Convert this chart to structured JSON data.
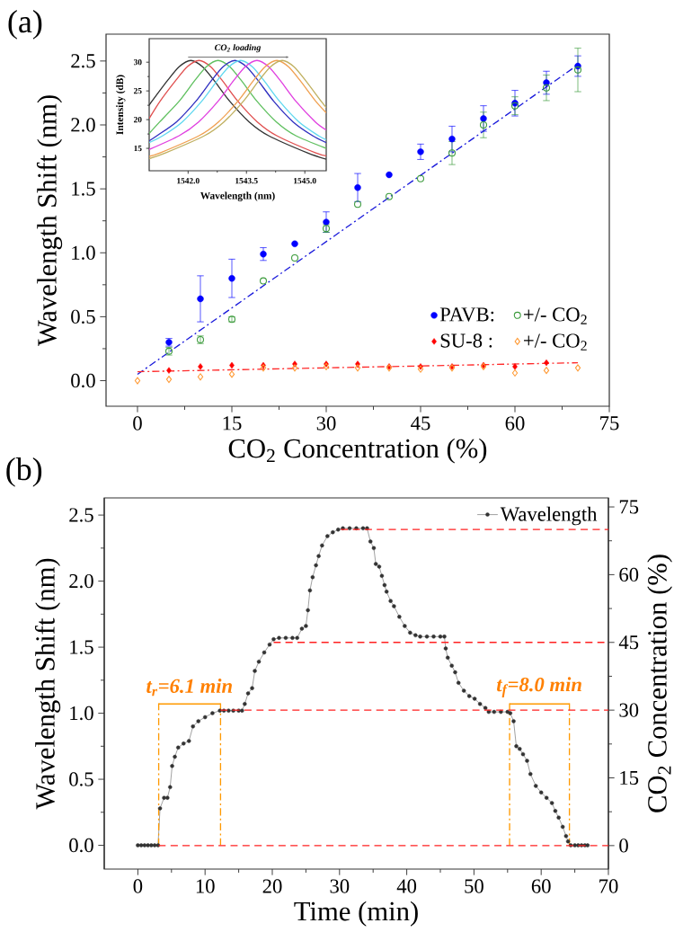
{
  "chart_data": [
    {
      "type": "scatter",
      "title": "(a)",
      "xlabel": "CO$_{2}$ Concentration (%)",
      "ylabel": "Wavelength Shift (nm)",
      "xlim": [
        -5,
        75
      ],
      "ylim": [
        -0.2,
        2.71
      ],
      "xticks": [
        0,
        15,
        30,
        45,
        60,
        75
      ],
      "yticks": [
        {
          "value": 0,
          "label": "0.0"
        },
        {
          "value": 0.5,
          "label": "0.5"
        },
        {
          "value": 1,
          "label": "1.0"
        },
        {
          "value": 1.5,
          "label": "1.5"
        },
        {
          "value": 2,
          "label": "2.0"
        },
        {
          "value": 2.5,
          "label": "2.5"
        }
      ],
      "legend": "bottom right",
      "series": [
        {
          "name": "PAVB:",
          "color": "#0000ff",
          "marker": "circle",
          "x": [
            5,
            10,
            15,
            20,
            25,
            30,
            35,
            40,
            45,
            50,
            55,
            60,
            65,
            70
          ],
          "values": [
            0.3,
            0.64,
            0.8,
            0.99,
            1.07,
            1.24,
            1.51,
            1.61,
            1.79,
            1.89,
            2.05,
            2.17,
            2.33,
            2.46
          ],
          "errors": [
            0.03,
            0.18,
            0.15,
            0.05,
            null,
            0.08,
            0.11,
            null,
            0.06,
            0.1,
            0.1,
            0.1,
            0.09,
            0.08
          ]
        },
        {
          "name": "+/- CO$_{2}$",
          "color": "#3a9a3a",
          "marker": "circle",
          "x": [
            5,
            10,
            15,
            20,
            25,
            30,
            35,
            40,
            45,
            50,
            55,
            60,
            65,
            70
          ],
          "values": [
            0.23,
            0.32,
            0.48,
            0.78,
            0.96,
            1.19,
            1.38,
            1.44,
            1.58,
            1.78,
            2.0,
            2.15,
            2.29,
            2.43
          ],
          "errors": [
            0.03,
            0.03,
            0.02,
            null,
            null,
            0.03,
            null,
            null,
            null,
            0.09,
            0.1,
            0.07,
            0.1,
            0.17
          ]
        },
        {
          "name": "SU-8 :",
          "color": "#ff0000",
          "marker": "diamond",
          "x": [
            5,
            10,
            15,
            20,
            25,
            30,
            35,
            40,
            45,
            50,
            55,
            60,
            65
          ],
          "values": [
            0.08,
            0.11,
            0.12,
            0.12,
            0.13,
            0.13,
            0.13,
            0.11,
            0.11,
            0.11,
            0.12,
            0.11,
            0.14
          ]
        },
        {
          "name": "+/- CO$_{2}$",
          "color": "#ff9933",
          "marker": "diamond",
          "x": [
            0,
            5,
            10,
            15,
            20,
            25,
            30,
            35,
            40,
            45,
            50,
            55,
            60,
            65,
            70
          ],
          "values": [
            0.0,
            0.01,
            0.03,
            0.05,
            0.1,
            0.1,
            0.11,
            0.1,
            0.1,
            0.09,
            0.1,
            0.11,
            0.06,
            0.08,
            0.1
          ]
        },
        {
          "type": "line",
          "color": "#1a1adb",
          "marker": "none",
          "line_style": "dashdot",
          "x": [
            0,
            70
          ],
          "values": [
            0.05,
            2.47
          ]
        },
        {
          "type": "line",
          "color": "#ff2a2a",
          "marker": "none",
          "line_style": "dashdot",
          "x": [
            0,
            70
          ],
          "values": [
            0.07,
            0.14
          ]
        }
      ]
    },
    {
      "type": "line",
      "xlabel": "Wavelength (nm)",
      "ylabel": "Intensity (dB)",
      "xlim": [
        1541.0,
        1545.55
      ],
      "ylim": [
        11.1,
        34.1
      ],
      "xticks": [
        {
          "value": 1542,
          "label": "1542.0"
        },
        {
          "value": 1543.5,
          "label": "1543.5"
        },
        {
          "value": 1545,
          "label": "1545.0"
        }
      ],
      "yticks": [
        15,
        20,
        25,
        30
      ],
      "annotations": [
        "CO$_{2}$ loading"
      ],
      "series": [
        {
          "color": "#333333",
          "marker": "none",
          "x": [
            1541.0,
            1541.07,
            1541.47,
            1541.77,
            1542.07,
            1542.37,
            1542.67,
            1543.07,
            1543.57,
            1544.07,
            1545.07,
            1545.55
          ],
          "values": [
            22.5,
            23.2,
            26.8,
            29.2,
            30.3,
            29.2,
            26.8,
            23.2,
            19.6,
            17.2,
            14.2,
            13.1
          ]
        },
        {
          "color": "#e05050",
          "marker": "none",
          "x": [
            1541.0,
            1541.28,
            1541.68,
            1541.98,
            1542.28,
            1542.58,
            1542.88,
            1543.28,
            1543.78,
            1544.28,
            1545.28,
            1545.55
          ],
          "values": [
            20.2,
            23.2,
            26.8,
            29.2,
            30.3,
            29.2,
            26.8,
            23.2,
            19.6,
            17.2,
            14.2,
            13.7
          ]
        },
        {
          "color": "#60c060",
          "marker": "none",
          "x": [
            1541.0,
            1541.27,
            1541.77,
            1542.17,
            1542.47,
            1542.77,
            1543.07,
            1543.37,
            1543.77,
            1544.27,
            1544.77,
            1545.55
          ],
          "values": [
            17.6,
            19.6,
            23.2,
            26.8,
            29.2,
            30.3,
            29.2,
            26.8,
            23.2,
            19.6,
            17.2,
            15.0
          ]
        },
        {
          "color": "#3030c0",
          "marker": "none",
          "x": [
            1541.0,
            1541.2,
            1541.7,
            1542.2,
            1542.6,
            1542.9,
            1543.2,
            1543.5,
            1543.8,
            1544.2,
            1544.7,
            1545.2,
            1545.55
          ],
          "values": [
            16.3,
            17.2,
            19.6,
            23.2,
            26.8,
            29.2,
            30.3,
            29.2,
            26.8,
            23.2,
            19.6,
            17.2,
            16.0
          ]
        },
        {
          "color": "#60d8f0",
          "marker": "none",
          "x": [
            1541.0,
            1541.35,
            1541.85,
            1542.35,
            1542.75,
            1543.05,
            1543.35,
            1543.65,
            1543.95,
            1544.35,
            1544.85,
            1545.35,
            1545.55
          ],
          "values": [
            16.0,
            17.2,
            19.6,
            23.2,
            26.8,
            29.2,
            30.3,
            29.2,
            26.8,
            23.2,
            19.6,
            17.2,
            16.5
          ]
        },
        {
          "color": "#e040e0",
          "marker": "none",
          "x": [
            1541.0,
            1541.77,
            1542.27,
            1542.77,
            1543.17,
            1543.47,
            1543.77,
            1544.07,
            1544.37,
            1544.77,
            1545.27,
            1545.55
          ],
          "values": [
            14.8,
            17.2,
            19.6,
            23.2,
            26.8,
            29.2,
            30.3,
            29.2,
            26.8,
            23.2,
            19.6,
            18.2
          ]
        },
        {
          "color": "#f0a050",
          "marker": "none",
          "x": [
            1541.0,
            1541.28,
            1542.28,
            1542.78,
            1543.28,
            1543.68,
            1543.98,
            1544.28,
            1544.58,
            1544.88,
            1545.28,
            1545.55
          ],
          "values": [
            13.6,
            14.2,
            17.2,
            19.6,
            23.2,
            26.8,
            29.2,
            30.3,
            29.2,
            26.8,
            23.2,
            21.2
          ]
        },
        {
          "color": "#c0b060",
          "marker": "none",
          "x": [
            1541.0,
            1541.42,
            1542.42,
            1542.92,
            1543.42,
            1543.82,
            1544.12,
            1544.42,
            1544.72,
            1545.02,
            1545.42,
            1545.55
          ],
          "values": [
            13.2,
            14.2,
            17.2,
            19.6,
            23.2,
            26.8,
            29.2,
            30.3,
            29.2,
            26.8,
            23.2,
            22.1
          ]
        }
      ]
    },
    {
      "type": "line",
      "title": "(b)",
      "xlabel": "Time (min)",
      "ylabel": "Wavelength Shift (nm)",
      "y2label": "CO$_{2}$ Concentration (%)",
      "xlim": [
        -5,
        70
      ],
      "ylim": [
        -0.18,
        2.63
      ],
      "y2lim": [
        -5.2,
        77.0
      ],
      "xticks": [
        0,
        10,
        20,
        30,
        40,
        50,
        60,
        70
      ],
      "yticks": [
        {
          "value": 0,
          "label": "0.0"
        },
        {
          "value": 0.5,
          "label": "0.5"
        },
        {
          "value": 1,
          "label": "1.0"
        },
        {
          "value": 1.5,
          "label": "1.5"
        },
        {
          "value": 2,
          "label": "2.0"
        },
        {
          "value": 2.5,
          "label": "2.5"
        }
      ],
      "y2ticks": [
        0,
        15,
        30,
        45,
        60,
        75
      ],
      "legend": "top right",
      "annotations": [
        "t$_{r}$=6.1 min",
        "t$_{f}$=8.0 min"
      ],
      "series": [
        {
          "name": "Wavelength",
          "color": "#333333",
          "marker": "circle",
          "x": [
            0,
            0.5,
            1,
            1.5,
            2,
            2.5,
            3.0,
            3.3,
            3.9,
            4.4,
            4.8,
            5.1,
            5.5,
            6.0,
            6.8,
            7.6,
            8.2,
            9.0,
            10.0,
            11.1,
            12.2,
            12.8,
            13.5,
            14.2,
            15.0,
            15.5,
            15.9,
            16.4,
            17.0,
            17.4,
            18.0,
            18.8,
            19.6,
            20.2,
            21.0,
            22.0,
            23.0,
            23.7,
            24.4,
            25.0,
            25.3,
            25.6,
            26.0,
            26.5,
            26.9,
            27.4,
            28.2,
            29.0,
            29.8,
            30.5,
            31.5,
            32.5,
            33.5,
            34.1,
            34.6,
            35.1,
            35.4,
            35.9,
            36.3,
            36.7,
            37.0,
            37.6,
            38.1,
            38.9,
            39.7,
            40.5,
            41.3,
            42.0,
            43.0,
            44.0,
            45.0,
            45.6,
            45.8,
            46.1,
            46.7,
            47.2,
            47.7,
            48.5,
            49.3,
            50.1,
            50.9,
            51.7,
            52.2,
            53.0,
            54.0,
            55.0,
            55.4,
            55.9,
            56.3,
            56.8,
            57.3,
            57.9,
            58.4,
            59.2,
            60.0,
            60.8,
            61.6,
            62.1,
            62.6,
            63.2,
            63.7,
            64.0,
            64.4,
            65.0,
            65.5,
            66.0,
            66.5,
            66.9
          ],
          "values": [
            0,
            0,
            0,
            0,
            0,
            0,
            0,
            0.28,
            0.36,
            0.36,
            0.44,
            0.6,
            0.67,
            0.74,
            0.77,
            0.79,
            0.9,
            0.94,
            0.97,
            1.0,
            1.02,
            1.02,
            1.02,
            1.02,
            1.02,
            1.02,
            1.07,
            1.15,
            1.19,
            1.32,
            1.39,
            1.46,
            1.52,
            1.56,
            1.57,
            1.57,
            1.57,
            1.57,
            1.64,
            1.66,
            1.78,
            1.93,
            2.03,
            2.12,
            2.19,
            2.27,
            2.34,
            2.37,
            2.39,
            2.4,
            2.4,
            2.4,
            2.4,
            2.4,
            2.3,
            2.25,
            2.13,
            2.11,
            2.04,
            1.97,
            1.92,
            1.85,
            1.81,
            1.73,
            1.66,
            1.61,
            1.59,
            1.58,
            1.58,
            1.58,
            1.58,
            1.58,
            1.49,
            1.42,
            1.36,
            1.31,
            1.23,
            1.17,
            1.13,
            1.11,
            1.07,
            1.04,
            1.01,
            1.01,
            1.01,
            1.01,
            1.0,
            0.94,
            0.75,
            0.73,
            0.69,
            0.64,
            0.54,
            0.45,
            0.4,
            0.36,
            0.32,
            0.26,
            0.21,
            0.14,
            0.07,
            0.03,
            0,
            0,
            0,
            0,
            0,
            0
          ]
        },
        {
          "axis": "y2",
          "color": "#ff2020",
          "marker": "none",
          "line_style": "dashed",
          "x": [
            3.1,
            70
          ],
          "values": [
            0,
            0
          ]
        },
        {
          "axis": "y2",
          "color": "#ff2020",
          "marker": "none",
          "line_style": "dashed",
          "x": [
            12.3,
            70
          ],
          "values": [
            30,
            30
          ]
        },
        {
          "axis": "y2",
          "color": "#ff2020",
          "marker": "none",
          "line_style": "dashed",
          "x": [
            20.2,
            70
          ],
          "values": [
            45,
            45
          ]
        },
        {
          "axis": "y2",
          "color": "#ff2020",
          "marker": "none",
          "line_style": "dashed",
          "x": [
            30.2,
            70
          ],
          "values": [
            70,
            70
          ]
        },
        {
          "color": "#ff9900",
          "marker": "none",
          "line_style": "dashdot",
          "x": [
            3.1,
            3.1
          ],
          "values": [
            0,
            1.09
          ]
        },
        {
          "color": "#ff9900",
          "marker": "none",
          "line_style": "dashdot",
          "x": [
            12.3,
            12.3
          ],
          "values": [
            0,
            1.09
          ]
        },
        {
          "color": "#ff9900",
          "marker": "none",
          "line_style": "dashdot",
          "x": [
            55.3,
            55.3
          ],
          "values": [
            0,
            1.09
          ]
        },
        {
          "color": "#ff9900",
          "marker": "none",
          "line_style": "dashdot",
          "x": [
            64.2,
            64.2
          ],
          "values": [
            0,
            1.09
          ]
        },
        {
          "color": "#ff9900",
          "marker": "none",
          "x": [
            3.1,
            12.3
          ],
          "values": [
            1.07,
            1.07
          ]
        },
        {
          "color": "#ff9900",
          "marker": "none",
          "x": [
            55.3,
            64.2
          ],
          "values": [
            1.07,
            1.07
          ]
        }
      ]
    }
  ]
}
